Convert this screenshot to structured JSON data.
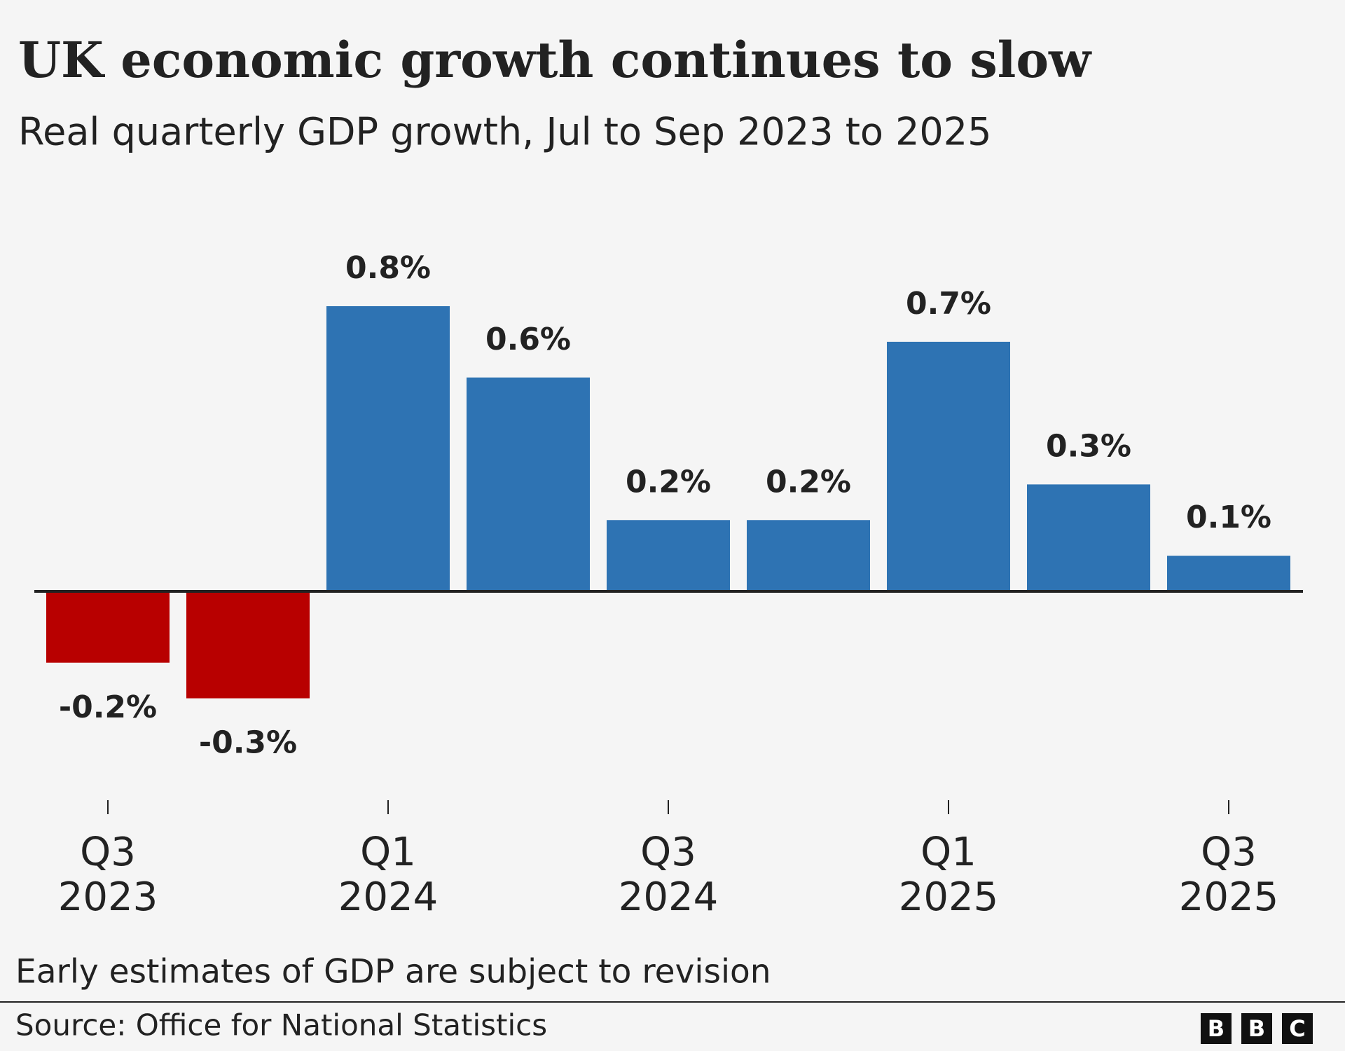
{
  "chart_data": {
    "type": "bar",
    "title": "UK economic growth continues to slow",
    "subtitle": "Real quarterly GDP growth, Jul to Sep 2023 to 2025",
    "categories": [
      "Q3 2023",
      null,
      "Q1 2024",
      null,
      "Q3 2024",
      null,
      "Q1 2025",
      null,
      "Q3 2025"
    ],
    "values": [
      -0.2,
      -0.3,
      0.8,
      0.6,
      0.2,
      0.2,
      0.7,
      0.3,
      0.1
    ],
    "value_labels": [
      "-0.2%",
      "-0.3%",
      "0.8%",
      "0.6%",
      "0.2%",
      "0.2%",
      "0.7%",
      "0.3%",
      "0.1%"
    ],
    "colors": [
      "#b80000",
      "#b80000",
      "#2e73b3",
      "#2e73b3",
      "#2e73b3",
      "#2e73b3",
      "#2e73b3",
      "#2e73b3",
      "#2e73b3"
    ],
    "note": "Early estimates of GDP are subject to revision",
    "source": "Source: Office for National Statistics",
    "logo": [
      "B",
      "B",
      "C"
    ]
  }
}
